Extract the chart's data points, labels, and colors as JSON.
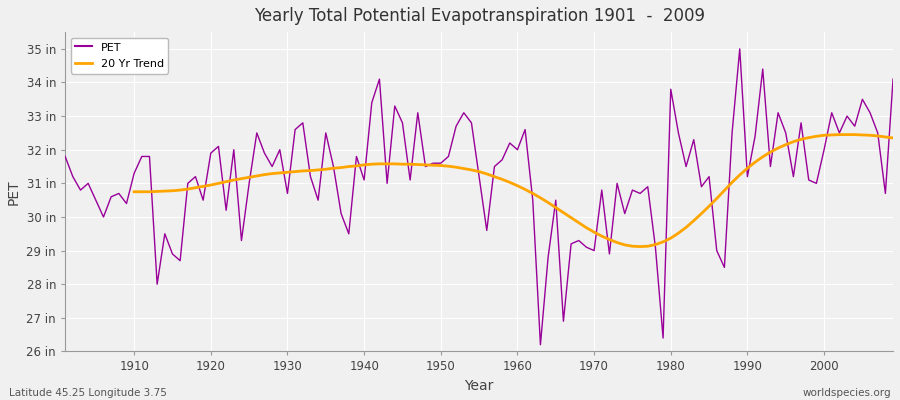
{
  "title": "Yearly Total Potential Evapotranspiration 1901  -  2009",
  "xlabel": "Year",
  "ylabel": "PET",
  "subtitle": "Latitude 45.25 Longitude 3.75",
  "watermark": "worldspecies.org",
  "pet_color": "#990099",
  "trend_color": "#FFA500",
  "background_color": "#f0f0f0",
  "plot_bg_color": "#f0f0f0",
  "ylim": [
    26,
    35.5
  ],
  "ytick_labels": [
    "26 in",
    "27 in",
    "28 in",
    "29 in",
    "30 in",
    "31 in",
    "32 in",
    "33 in",
    "34 in",
    "35 in"
  ],
  "ytick_values": [
    26,
    27,
    28,
    29,
    30,
    31,
    32,
    33,
    34,
    35
  ],
  "years": [
    1901,
    1902,
    1903,
    1904,
    1905,
    1906,
    1907,
    1908,
    1909,
    1910,
    1911,
    1912,
    1913,
    1914,
    1915,
    1916,
    1917,
    1918,
    1919,
    1920,
    1921,
    1922,
    1923,
    1924,
    1925,
    1926,
    1927,
    1928,
    1929,
    1930,
    1931,
    1932,
    1933,
    1934,
    1935,
    1936,
    1937,
    1938,
    1939,
    1940,
    1941,
    1942,
    1943,
    1944,
    1945,
    1946,
    1947,
    1948,
    1949,
    1950,
    1951,
    1952,
    1953,
    1954,
    1955,
    1956,
    1957,
    1958,
    1959,
    1960,
    1961,
    1962,
    1963,
    1964,
    1965,
    1966,
    1967,
    1968,
    1969,
    1970,
    1971,
    1972,
    1973,
    1974,
    1975,
    1976,
    1977,
    1978,
    1979,
    1980,
    1981,
    1982,
    1983,
    1984,
    1985,
    1986,
    1987,
    1988,
    1989,
    1990,
    1991,
    1992,
    1993,
    1994,
    1995,
    1996,
    1997,
    1998,
    1999,
    2000,
    2001,
    2002,
    2003,
    2004,
    2005,
    2006,
    2007,
    2008,
    2009
  ],
  "pet_values": [
    31.8,
    31.2,
    30.8,
    31.0,
    30.5,
    30.0,
    30.6,
    30.7,
    30.4,
    31.3,
    31.8,
    31.8,
    28.0,
    29.5,
    28.9,
    28.7,
    31.0,
    31.2,
    30.5,
    31.9,
    32.1,
    30.2,
    32.0,
    29.3,
    31.0,
    32.5,
    31.9,
    31.5,
    32.0,
    30.7,
    32.6,
    32.8,
    31.2,
    30.5,
    32.5,
    31.5,
    30.1,
    29.5,
    31.8,
    31.1,
    33.4,
    34.1,
    31.0,
    33.3,
    32.8,
    31.1,
    33.1,
    31.5,
    31.6,
    31.6,
    31.8,
    32.7,
    33.1,
    32.8,
    31.2,
    29.6,
    31.5,
    31.7,
    32.2,
    32.0,
    32.6,
    30.5,
    26.2,
    28.8,
    30.5,
    26.9,
    29.2,
    29.3,
    29.1,
    29.0,
    30.8,
    28.9,
    31.0,
    30.1,
    30.8,
    30.7,
    30.9,
    29.1,
    26.4,
    33.8,
    32.5,
    31.5,
    32.3,
    30.9,
    31.2,
    29.0,
    28.5,
    32.5,
    35.0,
    31.2,
    32.4,
    34.4,
    31.5,
    33.1,
    32.5,
    31.2,
    32.8,
    31.1,
    31.0,
    32.0,
    33.1,
    32.5,
    33.0,
    32.7,
    33.5,
    33.1,
    32.5,
    30.7,
    34.1
  ],
  "trend_years": [
    1910,
    1911,
    1912,
    1913,
    1914,
    1915,
    1916,
    1917,
    1918,
    1919,
    1920,
    1921,
    1922,
    1923,
    1924,
    1925,
    1926,
    1927,
    1928,
    1929,
    1930,
    1931,
    1932,
    1933,
    1934,
    1935,
    1936,
    1937,
    1938,
    1939,
    1940,
    1941,
    1942,
    1943,
    1944,
    1945,
    1946,
    1947,
    1948,
    1949,
    1950,
    1951,
    1952,
    1953,
    1954,
    1955,
    1956,
    1957,
    1958,
    1959,
    1960,
    1961,
    1962,
    1963,
    1964,
    1965,
    1966,
    1967,
    1968,
    1969,
    1970,
    1971,
    1972,
    1973,
    1974,
    1975,
    1976,
    1977,
    1978,
    1979,
    1980,
    1981,
    1982,
    1983,
    1984,
    1985,
    1986,
    1987,
    1988,
    1989,
    1990,
    1991,
    1992,
    1993,
    1994,
    1995,
    1996,
    1997,
    1998,
    1999,
    2000,
    2001,
    2002,
    2003,
    2004,
    2005,
    2006,
    2007,
    2008,
    2009
  ],
  "trend_values": [
    30.75,
    30.75,
    30.75,
    30.76,
    30.77,
    30.78,
    30.8,
    30.83,
    30.87,
    30.91,
    30.95,
    31.0,
    31.05,
    31.1,
    31.14,
    31.18,
    31.22,
    31.26,
    31.29,
    31.31,
    31.33,
    31.35,
    31.37,
    31.38,
    31.4,
    31.42,
    31.45,
    31.47,
    31.5,
    31.52,
    31.55,
    31.57,
    31.58,
    31.58,
    31.58,
    31.57,
    31.57,
    31.56,
    31.55,
    31.54,
    31.53,
    31.51,
    31.48,
    31.44,
    31.4,
    31.35,
    31.28,
    31.2,
    31.12,
    31.03,
    30.93,
    30.82,
    30.7,
    30.57,
    30.43,
    30.28,
    30.13,
    29.98,
    29.83,
    29.68,
    29.55,
    29.43,
    29.33,
    29.24,
    29.17,
    29.13,
    29.12,
    29.13,
    29.18,
    29.26,
    29.37,
    29.52,
    29.69,
    29.89,
    30.1,
    30.32,
    30.55,
    30.79,
    31.03,
    31.25,
    31.45,
    31.63,
    31.79,
    31.93,
    32.05,
    32.15,
    32.24,
    32.31,
    32.36,
    32.4,
    32.43,
    32.44,
    32.45,
    32.45,
    32.45,
    32.44,
    32.43,
    32.41,
    32.38,
    32.35
  ]
}
